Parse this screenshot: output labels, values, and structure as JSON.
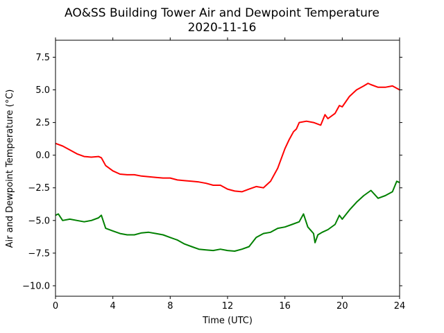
{
  "chart_data": {
    "type": "line",
    "title": "AO&SS Building Tower Air and Dewpoint Temperature",
    "subtitle": "2020-11-16",
    "xlabel": "Time (UTC)",
    "ylabel": "Air and Dewpoint Temperature (°C)",
    "xlim": [
      0,
      24
    ],
    "ylim": [
      -10.8,
      8.8
    ],
    "xticks": [
      "0",
      "4",
      "8",
      "12",
      "16",
      "20",
      "24"
    ],
    "yticks": [
      "-10.0",
      "-7.5",
      "-5.0",
      "-2.5",
      "0.0",
      "2.5",
      "5.0",
      "7.5"
    ],
    "grid": false,
    "series": [
      {
        "color": "#ff0000",
        "x": [
          0,
          0.5,
          1,
          1.5,
          2,
          2.5,
          3,
          3.2,
          3.5,
          4,
          4.5,
          5,
          5.5,
          6,
          6.5,
          7,
          7.5,
          8,
          8.5,
          9,
          9.5,
          10,
          10.5,
          11,
          11.5,
          12,
          12.5,
          13,
          13.5,
          14,
          14.5,
          15,
          15.5,
          16,
          16.3,
          16.6,
          16.8,
          17,
          17.5,
          18,
          18.5,
          18.8,
          19,
          19.5,
          19.8,
          20,
          20.5,
          21,
          21.5,
          21.8,
          22,
          22.5,
          23,
          23.5,
          24
        ],
        "y": [
          0.9,
          0.7,
          0.4,
          0.1,
          -0.1,
          -0.15,
          -0.1,
          -0.2,
          -0.8,
          -1.2,
          -1.45,
          -1.5,
          -1.5,
          -1.6,
          -1.65,
          -1.7,
          -1.75,
          -1.75,
          -1.9,
          -1.95,
          -2.0,
          -2.05,
          -2.15,
          -2.3,
          -2.3,
          -2.6,
          -2.75,
          -2.8,
          -2.6,
          -2.4,
          -2.5,
          -2.0,
          -1.0,
          0.5,
          1.2,
          1.8,
          2.0,
          2.5,
          2.6,
          2.5,
          2.3,
          3.1,
          2.8,
          3.2,
          3.8,
          3.7,
          4.5,
          5.0,
          5.3,
          5.5,
          5.4,
          5.2,
          5.2,
          5.3,
          5.0
        ]
      },
      {
        "color": "#008000",
        "x": [
          0,
          0.2,
          0.5,
          1,
          1.5,
          2,
          2.5,
          3,
          3.2,
          3.5,
          4,
          4.5,
          5,
          5.5,
          6,
          6.5,
          7,
          7.5,
          8,
          8.5,
          9,
          9.5,
          10,
          10.5,
          11,
          11.5,
          12,
          12.5,
          13,
          13.5,
          14,
          14.5,
          15,
          15.5,
          16,
          16.5,
          17,
          17.3,
          17.6,
          18,
          18.1,
          18.3,
          18.6,
          19,
          19.5,
          19.8,
          20,
          20.5,
          21,
          21.5,
          22,
          22.5,
          23,
          23.5,
          23.8,
          24
        ],
        "y": [
          -4.6,
          -4.5,
          -5.0,
          -4.9,
          -5.0,
          -5.1,
          -5.0,
          -4.8,
          -4.6,
          -5.6,
          -5.8,
          -6.0,
          -6.1,
          -6.1,
          -5.95,
          -5.9,
          -6.0,
          -6.1,
          -6.3,
          -6.5,
          -6.8,
          -7.0,
          -7.2,
          -7.25,
          -7.3,
          -7.2,
          -7.3,
          -7.35,
          -7.2,
          -7.0,
          -6.3,
          -6.0,
          -5.9,
          -5.6,
          -5.5,
          -5.3,
          -5.1,
          -4.5,
          -5.5,
          -6.0,
          -6.7,
          -6.1,
          -5.9,
          -5.7,
          -5.3,
          -4.6,
          -4.9,
          -4.2,
          -3.6,
          -3.1,
          -2.7,
          -3.3,
          -3.1,
          -2.8,
          -2.0,
          -2.1
        ]
      }
    ]
  }
}
